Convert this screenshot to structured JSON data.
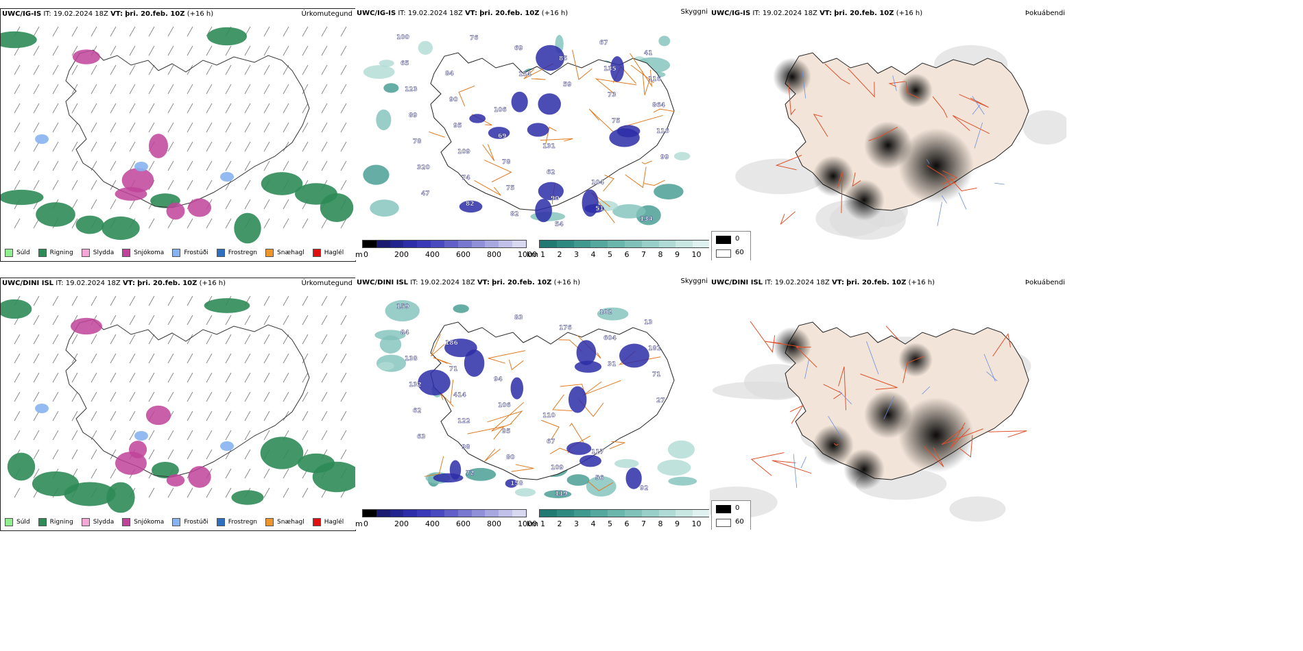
{
  "top": {
    "left": {
      "model": "UWC/IG-IS",
      "it_label": "IT:",
      "it": "19.02.2024 18Z",
      "vt_label": "VT:",
      "vt": "þri. 20.feb. 10Z",
      "lead": "(+16 h)",
      "field": "Úrkomutegund"
    },
    "middle": {
      "model": "UWC/IG-IS",
      "it_label": "IT:",
      "it": "19.02.2024 18Z",
      "vt_label": "VT:",
      "vt": "þri. 20.feb. 10Z",
      "lead": "(+16 h)",
      "field": "Skyggni"
    },
    "right": {
      "model": "UWC/IG-IS",
      "it_label": "IT:",
      "it": "19.02.2024 18Z",
      "vt_label": "VT:",
      "vt": "þri. 20.feb. 10Z",
      "lead": "(+16 h)",
      "field": "Þokuábendi"
    }
  },
  "bottom": {
    "left": {
      "model": "UWC/DINI ISL",
      "it_label": "IT:",
      "it": "19.02.2024 18Z",
      "vt_label": "VT:",
      "vt": "þri. 20.feb. 10Z",
      "lead": "(+16 h)",
      "field": "Úrkomutegund"
    },
    "middle": {
      "model": "UWC/DINI ISL",
      "it_label": "IT:",
      "it": "19.02.2024 18Z",
      "vt_label": "VT:",
      "vt": "þri. 20.feb. 10Z",
      "lead": "(+16 h)",
      "field": "Skyggni"
    },
    "right": {
      "model": "UWC/DINI ISL",
      "it_label": "IT:",
      "it": "19.02.2024 18Z",
      "vt_label": "VT:",
      "vt": "þri. 20.feb. 10Z",
      "lead": "(+16 h)",
      "field": "Þokuábendi"
    }
  },
  "precip_legend": [
    {
      "label": "Súld",
      "color": "#90ee90"
    },
    {
      "label": "Rigning",
      "color": "#2e8b57"
    },
    {
      "label": "Slydda",
      "color": "#f4a6d7"
    },
    {
      "label": "Snjókoma",
      "color": "#c0439a"
    },
    {
      "label": "Frostúði",
      "color": "#87b4f0"
    },
    {
      "label": "Frostregn",
      "color": "#2f6fc0"
    },
    {
      "label": "Snæhagl",
      "color": "#f0952a"
    },
    {
      "label": "Haglél",
      "color": "#e01010"
    }
  ],
  "elev_bar": {
    "unit": "m",
    "ticks": [
      "0",
      "200",
      "400",
      "600",
      "800",
      "1000"
    ],
    "colors": [
      "#000000",
      "#1a1a70",
      "#24248f",
      "#2d2da8",
      "#3a3ab8",
      "#4a4ac0",
      "#6060c8",
      "#7878d0",
      "#9090d8",
      "#a8a8e0",
      "#c0c0e8",
      "#d8d8f0"
    ]
  },
  "vis_bar": {
    "unit": "km",
    "ticks": [
      "1",
      "2",
      "3",
      "4",
      "5",
      "6",
      "7",
      "8",
      "9",
      "10"
    ],
    "colors": [
      "#207a72",
      "#2e8a80",
      "#3f998f",
      "#55a89e",
      "#6ab5ac",
      "#80c2ba",
      "#98cfc8",
      "#b0dbd5",
      "#c8e7e2",
      "#e0f2ef"
    ]
  },
  "fog_legend": {
    "black_label": "0",
    "white_label": "60"
  },
  "cloud_labels_top": [
    "100",
    "84",
    "106",
    "131",
    "104",
    "134",
    "65",
    "90",
    "69",
    "62",
    "51",
    "41",
    "123",
    "95",
    "78",
    "90",
    "67",
    "116",
    "89",
    "109",
    "75",
    "54",
    "135",
    "864",
    "78",
    "74",
    "82",
    "85",
    "73",
    "116",
    "320",
    "82",
    "69",
    "59",
    "75",
    "99",
    "47",
    "76",
    "154"
  ],
  "cloud_labels_bottom": [
    "159",
    "186",
    "94",
    "110",
    "117",
    "92",
    "84",
    "71",
    "106",
    "67",
    "56",
    "13",
    "138",
    "414",
    "95",
    "109",
    "102",
    "181",
    "132",
    "122",
    "80",
    "119",
    "604",
    "71",
    "62",
    "98",
    "158",
    "176",
    "31",
    "27",
    "63",
    "72",
    "83"
  ]
}
